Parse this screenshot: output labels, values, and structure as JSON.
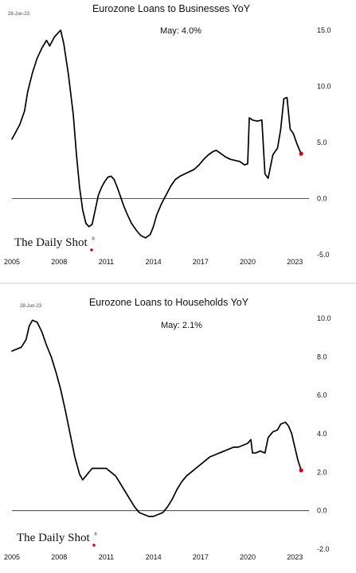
{
  "chart_data": [
    {
      "type": "line",
      "title": "Eurozone Loans to Businesses YoY",
      "date_stamp": "28-Jun-23",
      "annotation": "May:   4.0%",
      "brand": "The Daily Shot",
      "brand_mark": "®",
      "xlabel": "",
      "ylabel": "",
      "x_ticks": [
        "2005",
        "2008",
        "2011",
        "2014",
        "2017",
        "2020",
        "2023"
      ],
      "y_ticks": [
        "15.0",
        "10.0",
        "5.0",
        "0.0",
        "-5.0"
      ],
      "ylim": [
        -5,
        15
      ],
      "xlim": [
        2005.0,
        2023.9
      ],
      "zero_line": true,
      "highlight_color": "#d0021b",
      "line_color": "#000000",
      "series": [
        {
          "x": [
            2005.0,
            2005.2,
            2005.5,
            2005.8,
            2006.0,
            2006.3,
            2006.6,
            2006.9,
            2007.2,
            2007.4,
            2007.7,
            2007.9,
            2008.1,
            2008.3,
            2008.6,
            2008.9,
            2009.1,
            2009.3,
            2009.5,
            2009.7,
            2009.9,
            2010.1,
            2010.3,
            2010.5,
            2010.7,
            2010.9,
            2011.1,
            2011.3,
            2011.5,
            2011.7,
            2011.9,
            2012.1,
            2012.3,
            2012.6,
            2012.9,
            2013.2,
            2013.5,
            2013.8,
            2014.0,
            2014.2,
            2014.5,
            2014.8,
            2015.1,
            2015.4,
            2015.7,
            2016.0,
            2016.3,
            2016.6,
            2016.9,
            2017.2,
            2017.5,
            2017.8,
            2018.0,
            2018.3,
            2018.6,
            2018.9,
            2019.2,
            2019.5,
            2019.8,
            2020.0,
            2020.1,
            2020.3,
            2020.6,
            2020.9,
            2021.1,
            2021.3,
            2021.6,
            2021.9,
            2022.1,
            2022.3,
            2022.5,
            2022.7,
            2022.9,
            2023.1,
            2023.3,
            2023.4
          ],
          "y": [
            5.3,
            5.8,
            6.6,
            7.8,
            9.5,
            11.2,
            12.5,
            13.4,
            14.1,
            13.6,
            14.4,
            14.7,
            15.0,
            13.8,
            11.0,
            7.5,
            4.0,
            1.0,
            -1.0,
            -2.2,
            -2.5,
            -2.3,
            -1.0,
            0.3,
            1.0,
            1.5,
            1.9,
            2.0,
            1.7,
            1.0,
            0.2,
            -0.6,
            -1.3,
            -2.2,
            -2.8,
            -3.3,
            -3.5,
            -3.2,
            -2.5,
            -1.5,
            -0.5,
            0.3,
            1.1,
            1.7,
            2.0,
            2.2,
            2.4,
            2.6,
            3.0,
            3.5,
            3.9,
            4.2,
            4.3,
            4.0,
            3.7,
            3.5,
            3.4,
            3.3,
            3.0,
            3.1,
            7.2,
            7.0,
            6.9,
            7.0,
            2.2,
            1.8,
            3.9,
            4.5,
            6.2,
            8.9,
            9.0,
            6.2,
            5.8,
            5.0,
            4.3,
            4.0
          ]
        }
      ]
    },
    {
      "type": "line",
      "title": "Eurozone Loans to Households YoY",
      "date_stamp": "28-Jun-23",
      "annotation": "May:   2.1%",
      "brand": "The Daily Shot",
      "brand_mark": "®",
      "xlabel": "",
      "ylabel": "",
      "x_ticks": [
        "2005",
        "2008",
        "2011",
        "2014",
        "2017",
        "2020",
        "2023"
      ],
      "y_ticks": [
        "10.0",
        "8.0",
        "6.0",
        "4.0",
        "2.0",
        "0.0",
        "-2.0"
      ],
      "ylim": [
        -2,
        10
      ],
      "xlim": [
        2005.0,
        2023.9
      ],
      "zero_line": true,
      "highlight_color": "#d0021b",
      "line_color": "#000000",
      "series": [
        {
          "x": [
            2005.0,
            2005.3,
            2005.6,
            2005.9,
            2006.1,
            2006.3,
            2006.6,
            2006.9,
            2007.2,
            2007.5,
            2007.8,
            2008.1,
            2008.4,
            2008.7,
            2009.0,
            2009.3,
            2009.5,
            2009.7,
            2009.9,
            2010.1,
            2010.4,
            2010.7,
            2011.0,
            2011.3,
            2011.6,
            2011.9,
            2012.2,
            2012.5,
            2012.8,
            2013.1,
            2013.4,
            2013.7,
            2014.0,
            2014.3,
            2014.6,
            2014.9,
            2015.2,
            2015.5,
            2015.8,
            2016.1,
            2016.4,
            2016.7,
            2017.0,
            2017.3,
            2017.6,
            2017.9,
            2018.2,
            2018.5,
            2018.8,
            2019.1,
            2019.4,
            2019.7,
            2020.0,
            2020.2,
            2020.3,
            2020.5,
            2020.8,
            2021.1,
            2021.3,
            2021.6,
            2021.9,
            2022.1,
            2022.4,
            2022.6,
            2022.8,
            2023.0,
            2023.2,
            2023.4
          ],
          "y": [
            8.3,
            8.4,
            8.5,
            8.9,
            9.6,
            9.9,
            9.8,
            9.3,
            8.6,
            8.0,
            7.2,
            6.3,
            5.2,
            4.0,
            2.8,
            1.9,
            1.6,
            1.8,
            2.0,
            2.2,
            2.2,
            2.2,
            2.2,
            2.0,
            1.8,
            1.4,
            1.0,
            0.6,
            0.2,
            -0.1,
            -0.2,
            -0.3,
            -0.3,
            -0.2,
            -0.1,
            0.2,
            0.6,
            1.1,
            1.5,
            1.8,
            2.0,
            2.2,
            2.4,
            2.6,
            2.8,
            2.9,
            3.0,
            3.1,
            3.2,
            3.3,
            3.3,
            3.4,
            3.5,
            3.7,
            3.0,
            3.0,
            3.1,
            3.0,
            3.8,
            4.1,
            4.2,
            4.5,
            4.6,
            4.4,
            4.0,
            3.3,
            2.6,
            2.1
          ]
        }
      ]
    }
  ]
}
